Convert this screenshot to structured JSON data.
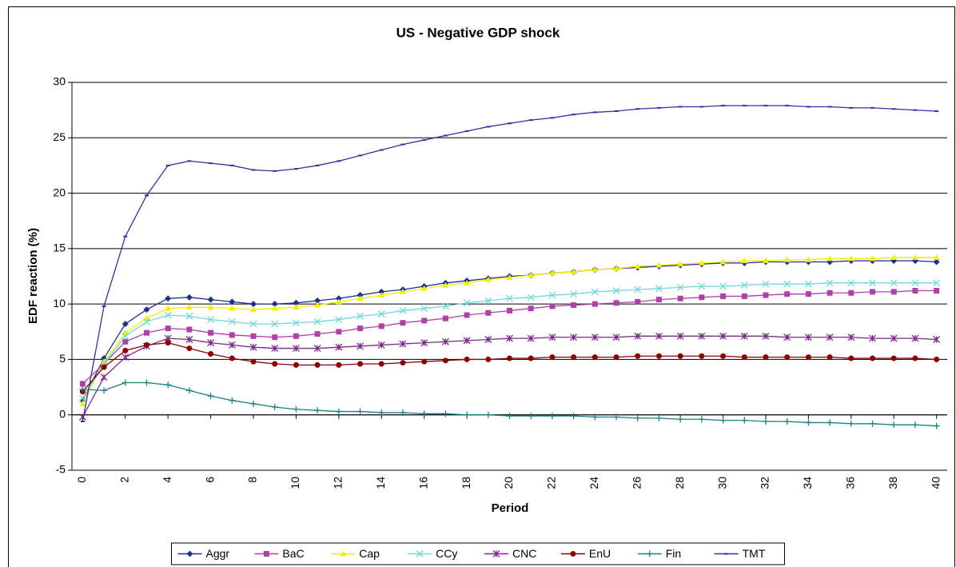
{
  "chart_data": {
    "type": "line",
    "title": "US - Negative GDP shock",
    "x_label": "Period",
    "y_label": "EDF reaction (%)",
    "x": [
      0,
      1,
      2,
      3,
      4,
      5,
      6,
      7,
      8,
      9,
      10,
      11,
      12,
      13,
      14,
      15,
      16,
      17,
      18,
      19,
      20,
      21,
      22,
      23,
      24,
      25,
      26,
      27,
      28,
      29,
      30,
      31,
      32,
      33,
      34,
      35,
      36,
      37,
      38,
      39,
      40
    ],
    "xlim": [
      -0.5,
      40.5
    ],
    "xticks": [
      0,
      2,
      4,
      6,
      8,
      10,
      12,
      14,
      16,
      18,
      20,
      22,
      24,
      26,
      28,
      30,
      32,
      34,
      36,
      38,
      40
    ],
    "ylim": [
      -5,
      30
    ],
    "yticks": [
      -5,
      0,
      5,
      10,
      15,
      20,
      25,
      30
    ],
    "grid": true,
    "legend": "bottom",
    "series": [
      {
        "name": "Aggr",
        "color": "#1f2f8f",
        "marker": "diamond",
        "values": [
          1.3,
          5.1,
          8.2,
          9.5,
          10.5,
          10.6,
          10.4,
          10.2,
          10.0,
          10.0,
          10.1,
          10.3,
          10.5,
          10.8,
          11.1,
          11.3,
          11.6,
          11.9,
          12.1,
          12.3,
          12.5,
          12.6,
          12.8,
          12.9,
          13.1,
          13.2,
          13.3,
          13.4,
          13.5,
          13.6,
          13.7,
          13.7,
          13.8,
          13.8,
          13.8,
          13.8,
          13.9,
          13.9,
          13.9,
          13.9,
          13.8
        ]
      },
      {
        "name": "BaC",
        "color": "#b040a8",
        "marker": "square",
        "values": [
          2.8,
          4.6,
          6.6,
          7.4,
          7.8,
          7.7,
          7.4,
          7.2,
          7.1,
          7.0,
          7.1,
          7.3,
          7.5,
          7.8,
          8.0,
          8.3,
          8.5,
          8.7,
          9.0,
          9.2,
          9.4,
          9.6,
          9.8,
          9.9,
          10.0,
          10.1,
          10.2,
          10.4,
          10.5,
          10.6,
          10.7,
          10.7,
          10.8,
          10.9,
          10.9,
          11.0,
          11.0,
          11.1,
          11.1,
          11.2,
          11.2
        ]
      },
      {
        "name": "Cap",
        "color": "#f0f000",
        "marker": "triangle",
        "values": [
          1.0,
          4.8,
          7.4,
          8.7,
          9.6,
          9.7,
          9.7,
          9.6,
          9.5,
          9.6,
          9.7,
          9.9,
          10.2,
          10.5,
          10.8,
          11.1,
          11.4,
          11.7,
          11.9,
          12.2,
          12.4,
          12.6,
          12.8,
          12.9,
          13.1,
          13.2,
          13.4,
          13.5,
          13.6,
          13.7,
          13.8,
          13.9,
          13.9,
          14.0,
          14.0,
          14.1,
          14.1,
          14.1,
          14.2,
          14.2,
          14.2
        ]
      },
      {
        "name": "CCy",
        "color": "#70d8d8",
        "marker": "x",
        "values": [
          1.5,
          4.6,
          7.1,
          8.4,
          9.0,
          8.9,
          8.6,
          8.4,
          8.2,
          8.2,
          8.3,
          8.4,
          8.6,
          8.9,
          9.1,
          9.4,
          9.6,
          9.8,
          10.1,
          10.3,
          10.5,
          10.6,
          10.8,
          10.9,
          11.1,
          11.2,
          11.3,
          11.4,
          11.5,
          11.6,
          11.6,
          11.7,
          11.8,
          11.8,
          11.8,
          11.9,
          11.9,
          11.9,
          11.9,
          11.9,
          11.9
        ]
      },
      {
        "name": "CNC",
        "color": "#7a2a88",
        "marker": "star",
        "values": [
          -0.2,
          3.4,
          5.2,
          6.2,
          6.9,
          6.8,
          6.5,
          6.3,
          6.1,
          6.0,
          6.0,
          6.0,
          6.1,
          6.2,
          6.3,
          6.4,
          6.5,
          6.6,
          6.7,
          6.8,
          6.9,
          6.9,
          7.0,
          7.0,
          7.0,
          7.0,
          7.1,
          7.1,
          7.1,
          7.1,
          7.1,
          7.1,
          7.1,
          7.0,
          7.0,
          7.0,
          7.0,
          6.9,
          6.9,
          6.9,
          6.8
        ]
      },
      {
        "name": "EnU",
        "color": "#8b0000",
        "marker": "circle",
        "values": [
          2.1,
          4.3,
          5.8,
          6.3,
          6.5,
          6.0,
          5.5,
          5.1,
          4.8,
          4.6,
          4.5,
          4.5,
          4.5,
          4.6,
          4.6,
          4.7,
          4.8,
          4.9,
          5.0,
          5.0,
          5.1,
          5.1,
          5.2,
          5.2,
          5.2,
          5.2,
          5.3,
          5.3,
          5.3,
          5.3,
          5.3,
          5.2,
          5.2,
          5.2,
          5.2,
          5.2,
          5.1,
          5.1,
          5.1,
          5.1,
          5.0
        ]
      },
      {
        "name": "Fin",
        "color": "#1a8080",
        "marker": "plus",
        "values": [
          2.3,
          2.2,
          2.9,
          2.9,
          2.7,
          2.2,
          1.7,
          1.3,
          1.0,
          0.7,
          0.5,
          0.4,
          0.3,
          0.3,
          0.2,
          0.2,
          0.1,
          0.1,
          0.0,
          0.0,
          -0.1,
          -0.1,
          -0.1,
          -0.1,
          -0.2,
          -0.2,
          -0.3,
          -0.3,
          -0.4,
          -0.4,
          -0.5,
          -0.5,
          -0.6,
          -0.6,
          -0.7,
          -0.7,
          -0.8,
          -0.8,
          -0.9,
          -0.9,
          -1.0
        ]
      },
      {
        "name": "TMT",
        "color": "#3030a0",
        "marker": "dash",
        "values": [
          -0.6,
          9.8,
          16.1,
          19.8,
          22.5,
          22.9,
          22.7,
          22.5,
          22.1,
          22.0,
          22.2,
          22.5,
          22.9,
          23.4,
          23.9,
          24.4,
          24.8,
          25.2,
          25.6,
          26.0,
          26.3,
          26.6,
          26.8,
          27.1,
          27.3,
          27.4,
          27.6,
          27.7,
          27.8,
          27.8,
          27.9,
          27.9,
          27.9,
          27.9,
          27.8,
          27.8,
          27.7,
          27.7,
          27.6,
          27.5,
          27.4
        ]
      }
    ]
  }
}
